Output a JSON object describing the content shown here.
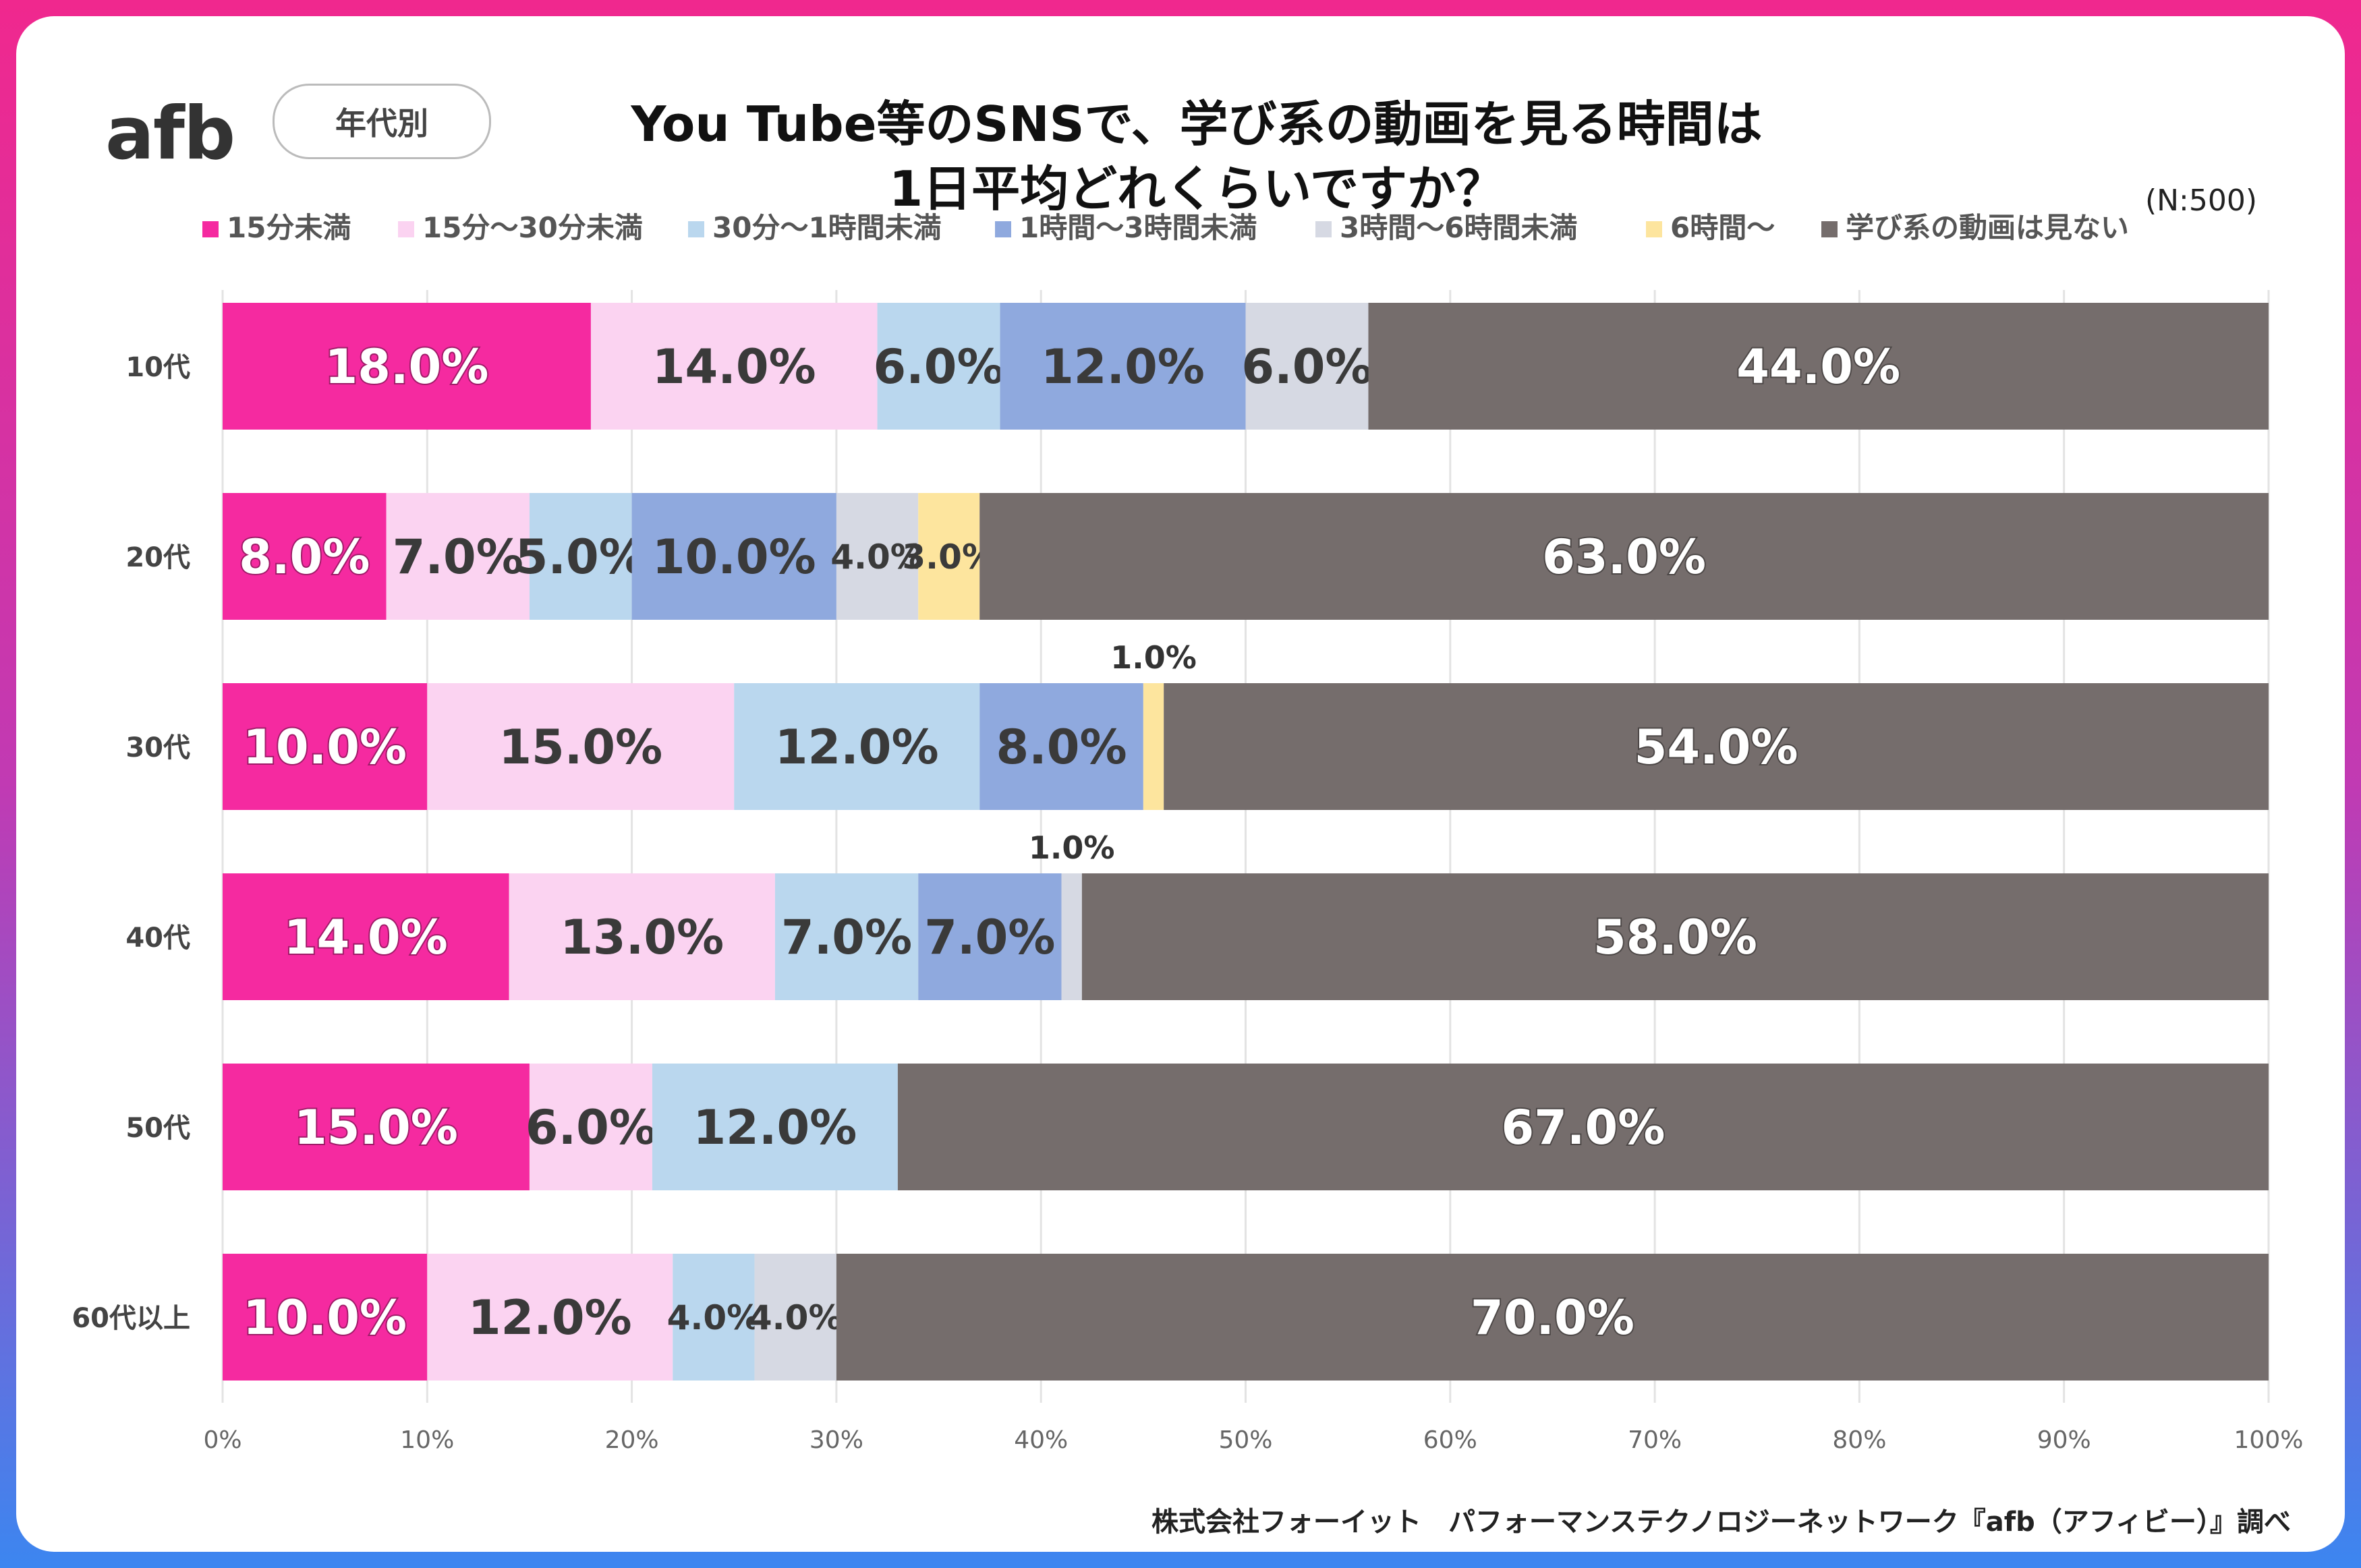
{
  "header": {
    "logo": "afb",
    "badge": "年代別",
    "title_line1": "You Tube等のSNSで、学び系の動画を見る時間は",
    "title_line2": "1日平均どれくらいですか？",
    "sample": "(N:500)"
  },
  "footer": {
    "source": "株式会社フォーイット　パフォーマンステクノロジーネットワーク『afb（アフィビー）』調べ"
  },
  "chart_data": {
    "type": "bar",
    "orientation": "horizontal",
    "stacked": true,
    "categories": [
      "10代",
      "20代",
      "30代",
      "40代",
      "50代",
      "60代以上"
    ],
    "series": [
      {
        "name": "15分未満",
        "color": "#f52aa0",
        "values": [
          18,
          8,
          10,
          14,
          15,
          10
        ]
      },
      {
        "name": "15分〜30分未満",
        "color": "#fbd3f1",
        "values": [
          14,
          7,
          15,
          13,
          6,
          12
        ]
      },
      {
        "name": "30分〜1時間未満",
        "color": "#bad7ee",
        "values": [
          6,
          5,
          12,
          7,
          12,
          4
        ]
      },
      {
        "name": "1時間〜3時間未満",
        "color": "#8fa9de",
        "values": [
          12,
          10,
          8,
          7,
          0,
          0
        ]
      },
      {
        "name": "3時間〜6時間未満",
        "color": "#d6d9e3",
        "values": [
          6,
          4,
          0,
          1,
          0,
          4
        ]
      },
      {
        "name": "6時間〜",
        "color": "#fde59e",
        "values": [
          0,
          3,
          1,
          0,
          0,
          0
        ]
      },
      {
        "name": "学び系の動画は見ない",
        "color": "#756d6c",
        "values": [
          44,
          63,
          54,
          58,
          67,
          70
        ]
      }
    ],
    "value_suffix": "%",
    "xlim": [
      0,
      100
    ],
    "x_ticks": [
      "0%",
      "10%",
      "20%",
      "30%",
      "40%",
      "50%",
      "60%",
      "70%",
      "80%",
      "90%",
      "100%"
    ],
    "legend": "top",
    "grid": true
  }
}
